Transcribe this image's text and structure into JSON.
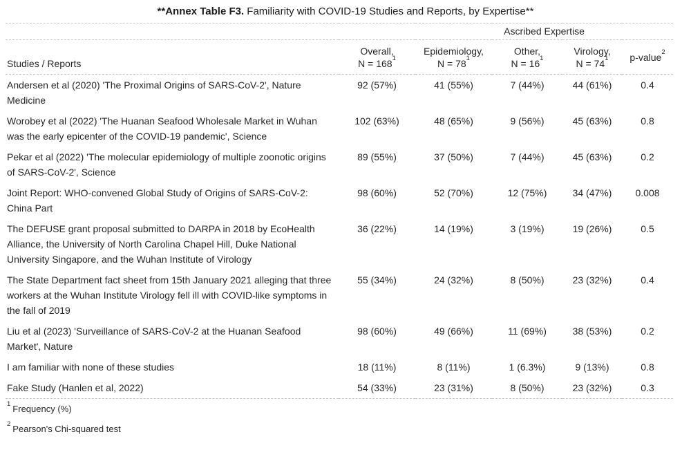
{
  "colors": {
    "background": "#ffffff",
    "text": "#262626",
    "rule": "#c7c7c7"
  },
  "title": {
    "bold": "**Annex Table F3.",
    "rest": " Familiarity with COVID-19 Studies and Reports, by Expertise**"
  },
  "table": {
    "spanner": "Ascribed Expertise",
    "columns": [
      {
        "label": "Studies / Reports"
      },
      {
        "label": "Overall,",
        "n": "N = 168",
        "sup": "1"
      },
      {
        "label": "Epidemiology,",
        "n": "N = 78",
        "sup": "1"
      },
      {
        "label": "Other,",
        "n": "N = 16",
        "sup": "1"
      },
      {
        "label": "Virology,",
        "n": "N = 74",
        "sup": "1"
      },
      {
        "label": "p-value",
        "sup": "2"
      }
    ],
    "rows": [
      {
        "study": "Andersen et al (2020) 'The Proximal Origins of SARS-CoV-2', Nature Medicine",
        "overall": "92 (57%)",
        "epidemiology": "41 (55%)",
        "other": "7 (44%)",
        "virology": "44 (61%)",
        "p": "0.4"
      },
      {
        "study": "Worobey et al (2022) 'The Huanan Seafood Wholesale Market in Wuhan was the early epicenter of the COVID-19 pandemic', Science",
        "overall": "102 (63%)",
        "epidemiology": "48 (65%)",
        "other": "9 (56%)",
        "virology": "45 (63%)",
        "p": "0.8"
      },
      {
        "study": "Pekar et al (2022) 'The molecular epidemiology of multiple zoonotic origins of SARS-CoV-2', Science",
        "overall": "89 (55%)",
        "epidemiology": "37 (50%)",
        "other": "7 (44%)",
        "virology": "45 (63%)",
        "p": "0.2"
      },
      {
        "study": "Joint Report: WHO-convened Global Study of Origins of SARS-CoV-2: China Part",
        "overall": "98 (60%)",
        "epidemiology": "52 (70%)",
        "other": "12 (75%)",
        "virology": "34 (47%)",
        "p": "0.008"
      },
      {
        "study": "The DEFUSE grant proposal submitted to DARPA in 2018 by EcoHealth Alliance, the University of North Carolina Chapel Hill, Duke National University Singapore, and the Wuhan Institute of Virology",
        "overall": "36 (22%)",
        "epidemiology": "14 (19%)",
        "other": "3 (19%)",
        "virology": "19 (26%)",
        "p": "0.5"
      },
      {
        "study": "The State Department fact sheet from 15th January 2021 alleging that three workers at the Wuhan Institute Virology fell ill with COVID-like symptoms in the fall of 2019",
        "overall": "55 (34%)",
        "epidemiology": "24 (32%)",
        "other": "8 (50%)",
        "virology": "23 (32%)",
        "p": "0.4"
      },
      {
        "study": "Liu et al (2023) 'Surveillance of SARS-CoV-2 at the Huanan Seafood Market', Nature",
        "overall": "98 (60%)",
        "epidemiology": "49 (66%)",
        "other": "11 (69%)",
        "virology": "38 (53%)",
        "p": "0.2"
      },
      {
        "study": "I am familiar with none of these studies",
        "overall": "18 (11%)",
        "epidemiology": "8 (11%)",
        "other": "1 (6.3%)",
        "virology": "9 (13%)",
        "p": "0.8"
      },
      {
        "study": "Fake Study (Hanlen et al, 2022)",
        "overall": "54 (33%)",
        "epidemiology": "23 (31%)",
        "other": "8 (50%)",
        "virology": "23 (32%)",
        "p": "0.3"
      }
    ],
    "footnotes": [
      {
        "sup": "1",
        "text": "Frequency (%)"
      },
      {
        "sup": "2",
        "text": "Pearson's Chi-squared test"
      }
    ]
  }
}
